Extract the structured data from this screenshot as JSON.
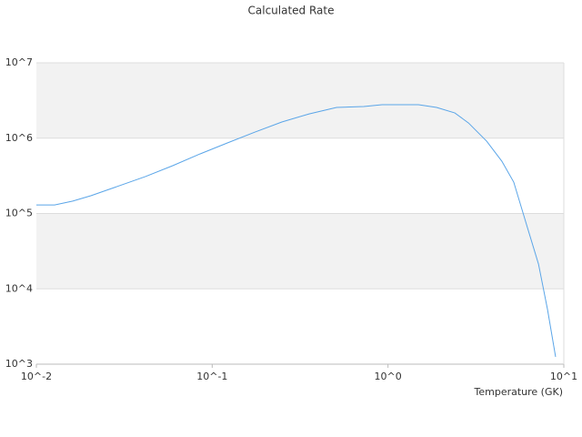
{
  "chart_data": {
    "type": "line",
    "title": "Calculated Rate",
    "x_label": "Temperature (GK)",
    "x_log": true,
    "y_log": true,
    "color": "#5aa5e8",
    "banded_grid": true,
    "x": [
      0.01,
      0.0127,
      0.0161,
      0.0204,
      0.0259,
      0.0417,
      0.0596,
      0.0852,
      0.122,
      0.1745,
      0.249,
      0.356,
      0.51,
      0.729,
      0.925,
      1.17,
      1.49,
      1.89,
      2.4,
      2.87,
      3.64,
      4.44,
      5.19,
      6.21,
      7.18,
      8.08,
      8.98
    ],
    "values": [
      130000,
      130000,
      146000,
      172000,
      209000,
      309000,
      431000,
      617000,
      864000,
      1200000,
      1640000,
      2100000,
      2560000,
      2630000,
      2780000,
      2780000,
      2780000,
      2560000,
      2160000,
      1590000,
      912000,
      495000,
      261000,
      65000,
      21300,
      5310,
      1250
    ],
    "xlim": [
      0.01,
      10
    ],
    "ylim": [
      1000,
      10000000
    ],
    "xticks": [
      {
        "value": 0.01,
        "label": "10^-2"
      },
      {
        "value": 0.1,
        "label": "10^-1"
      },
      {
        "value": 1,
        "label": "10^0"
      },
      {
        "value": 10,
        "label": "10^1"
      }
    ],
    "yticks": [
      {
        "value": 1000,
        "label": "10^3"
      },
      {
        "value": 10000,
        "label": "10^4"
      },
      {
        "value": 100000,
        "label": "10^5"
      },
      {
        "value": 1000000,
        "label": "10^6"
      },
      {
        "value": 10000000,
        "label": "10^7"
      }
    ]
  }
}
